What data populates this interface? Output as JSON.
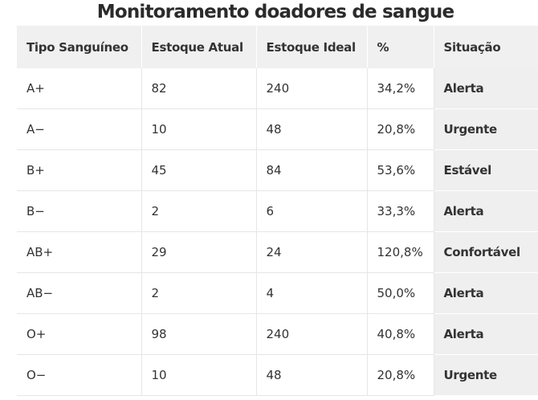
{
  "title": "Monitoramento doadores de sangue",
  "table": {
    "headers": [
      "Tipo Sanguíneo",
      "Estoque Atual",
      "Estoque Ideal",
      "%",
      "Situação"
    ],
    "rows": [
      {
        "type": "A+",
        "current": "82",
        "ideal": "240",
        "percent": "34,2%",
        "status": "Alerta"
      },
      {
        "type": "A−",
        "current": "10",
        "ideal": "48",
        "percent": "20,8%",
        "status": "Urgente"
      },
      {
        "type": "B+",
        "current": "45",
        "ideal": "84",
        "percent": "53,6%",
        "status": "Estável"
      },
      {
        "type": "B−",
        "current": "2",
        "ideal": "6",
        "percent": "33,3%",
        "status": "Alerta"
      },
      {
        "type": "AB+",
        "current": "29",
        "ideal": "24",
        "percent": "120,8%",
        "status": "Confortável"
      },
      {
        "type": "AB−",
        "current": "2",
        "ideal": "4",
        "percent": "50,0%",
        "status": "Alerta"
      },
      {
        "type": "O+",
        "current": "98",
        "ideal": "240",
        "percent": "40,8%",
        "status": "Alerta"
      },
      {
        "type": "O−",
        "current": "10",
        "ideal": "48",
        "percent": "20,8%",
        "status": "Urgente"
      }
    ]
  },
  "colors": {
    "header_bg": "#f0f0f0",
    "status_bg": "#efefef",
    "row_border": "#e6e6e6",
    "text": "#333333"
  }
}
